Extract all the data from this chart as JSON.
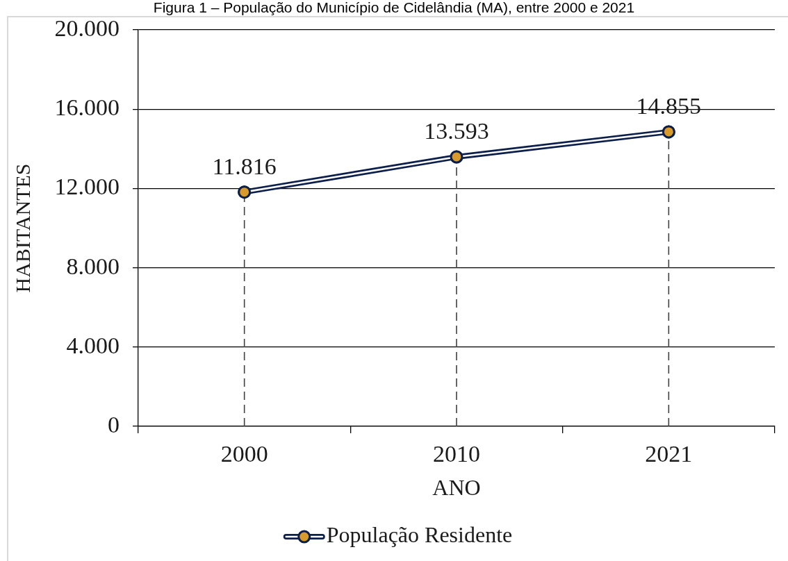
{
  "chart_data": {
    "type": "line",
    "title": "Figura 1 – População do Município de Cidelândia (MA), entre 2000 e 2021",
    "xlabel": "ANO",
    "ylabel": "HABITANTES",
    "categories": [
      "2000",
      "2010",
      "2021"
    ],
    "series": [
      {
        "name": "População Residente",
        "color": "#0c1f4a",
        "colors": [
          "#d79a2b",
          "#d79a2b",
          "#d79a2b"
        ],
        "values": [
          11816,
          13593,
          14855
        ],
        "value_labels": [
          "11.816",
          "13.593",
          "14.855"
        ]
      }
    ],
    "ylim": [
      0,
      20000
    ],
    "yticks": [
      0,
      {
        "value": 4000,
        "label": "4.000"
      },
      {
        "value": 8000,
        "label": "8.000"
      },
      {
        "value": 12000,
        "label": "12.000"
      },
      {
        "value": 16000,
        "label": "16.000"
      },
      {
        "value": 20000,
        "label": "20.000"
      }
    ],
    "grid": "y",
    "legend": "bottom",
    "marker": "circle",
    "line_style": "solid",
    "ref_lines": [
      {
        "axis": "x",
        "value": "2000",
        "line_style": "dashed",
        "color": "#404040"
      },
      {
        "axis": "x",
        "value": "2010",
        "line_style": "dashed",
        "color": "#404040"
      },
      {
        "axis": "x",
        "value": "2021",
        "line_style": "dashed",
        "color": "#404040"
      }
    ]
  }
}
